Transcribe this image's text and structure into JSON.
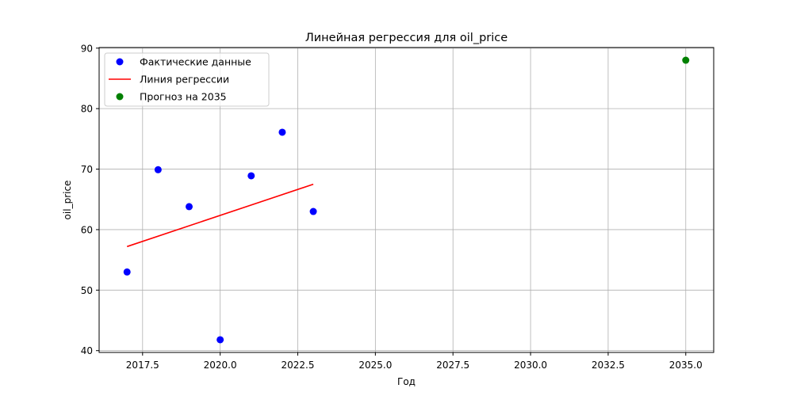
{
  "chart_data": {
    "type": "scatter",
    "title": "Линейная регрессия для oil_price",
    "xlabel": "Год",
    "ylabel": "oil_price",
    "xlim": [
      2016.1,
      2035.9
    ],
    "ylim": [
      39.7,
      90.1
    ],
    "xticks": [
      2017.5,
      2020.0,
      2022.5,
      2025.0,
      2027.5,
      2030.0,
      2032.5,
      2035.0
    ],
    "xtick_labels": [
      "2017.5",
      "2020.0",
      "2022.5",
      "2025.0",
      "2027.5",
      "2030.0",
      "2032.5",
      "2035.0"
    ],
    "yticks": [
      40,
      50,
      60,
      70,
      80,
      90
    ],
    "ytick_labels": [
      "40",
      "50",
      "60",
      "70",
      "80",
      "90"
    ],
    "grid": true,
    "legend_position": "top-left",
    "series": [
      {
        "name": "Фактические данные",
        "kind": "scatter",
        "color": "#0000ff",
        "x": [
          2017,
          2018,
          2019,
          2020,
          2021,
          2022,
          2023
        ],
        "y": [
          53.0,
          69.9,
          63.8,
          41.8,
          68.9,
          76.1,
          63.0
        ]
      },
      {
        "name": "Линия регрессии",
        "kind": "line",
        "color": "#ff0000",
        "x": [
          2017,
          2023
        ],
        "y": [
          57.2,
          67.5
        ]
      },
      {
        "name": "Прогноз на 2035",
        "kind": "scatter",
        "color": "#008000",
        "x": [
          2035
        ],
        "y": [
          88.0
        ]
      }
    ]
  }
}
